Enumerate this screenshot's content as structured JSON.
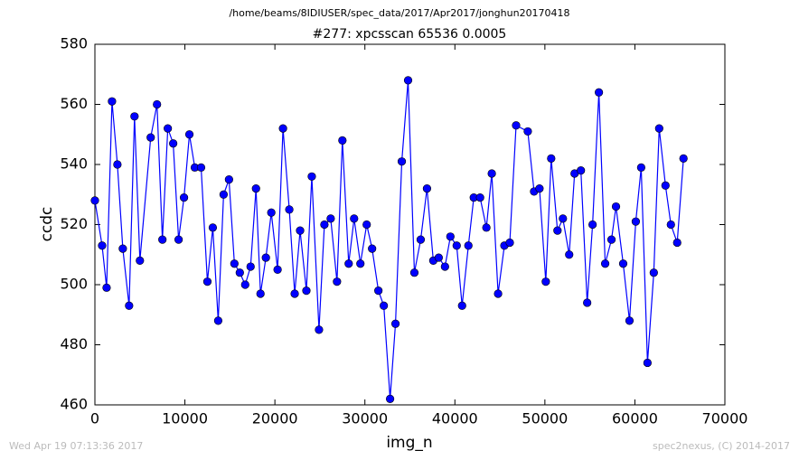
{
  "chart_data": {
    "type": "line",
    "suptitle": "/home/beams/8IDIUSER/spec_data/2017/Apr2017/jonghun20170418",
    "title": "#277: xpcsscan 65536 0.0005",
    "xlabel": "img_n",
    "ylabel": "ccdc",
    "footer_left": "Wed Apr 19 07:13:36 2017",
    "footer_right": "spec2nexus, (C) 2014-2017",
    "x": [
      0,
      800,
      1300,
      1900,
      2500,
      3100,
      3800,
      4400,
      5000,
      6200,
      6900,
      7500,
      8100,
      8700,
      9300,
      9900,
      10500,
      11100,
      11800,
      12500,
      13100,
      13700,
      14300,
      14900,
      15500,
      16100,
      16700,
      17300,
      17900,
      18400,
      19000,
      19600,
      20300,
      20900,
      21600,
      22200,
      22800,
      23500,
      24100,
      24900,
      25500,
      26200,
      26900,
      27500,
      28200,
      28800,
      29500,
      30200,
      30800,
      31500,
      32100,
      32800,
      33400,
      34100,
      34800,
      35500,
      36200,
      36900,
      37600,
      38200,
      38900,
      39500,
      40200,
      40800,
      41500,
      42100,
      42800,
      43500,
      44100,
      44800,
      45500,
      46100,
      46800,
      48100,
      48800,
      49400,
      50100,
      50700,
      51400,
      52000,
      52700,
      53300,
      54000,
      54700,
      55300,
      56000,
      56700,
      57400,
      57900,
      58700,
      59400,
      60100,
      60700,
      61400,
      62100,
      62700,
      63400,
      64000,
      64700,
      65400
    ],
    "series": [
      {
        "name": "ccdc",
        "color": "#0000ff",
        "values": [
          528,
          513,
          499,
          561,
          540,
          512,
          493,
          556,
          508,
          549,
          560,
          515,
          552,
          547,
          515,
          529,
          550,
          539,
          539,
          501,
          519,
          488,
          530,
          535,
          507,
          504,
          500,
          506,
          532,
          497,
          509,
          524,
          505,
          552,
          525,
          497,
          518,
          498,
          536,
          485,
          520,
          522,
          501,
          548,
          507,
          522,
          507,
          520,
          512,
          498,
          493,
          462,
          487,
          541,
          568,
          504,
          515,
          532,
          508,
          509,
          506,
          516,
          513,
          493,
          513,
          529,
          529,
          519,
          537,
          497,
          513,
          514,
          553,
          551,
          531,
          532,
          501,
          542,
          518,
          522,
          510,
          537,
          538,
          494,
          520,
          564,
          507,
          515,
          526,
          507,
          488,
          521,
          539,
          474,
          504,
          552,
          533,
          520,
          514,
          542
        ]
      }
    ],
    "xlim": [
      0,
      70000
    ],
    "xticks": [
      0,
      10000,
      20000,
      30000,
      40000,
      50000,
      60000,
      70000
    ],
    "ylim": [
      460,
      580
    ],
    "yticks": [
      460,
      480,
      500,
      520,
      540,
      560,
      580
    ]
  }
}
